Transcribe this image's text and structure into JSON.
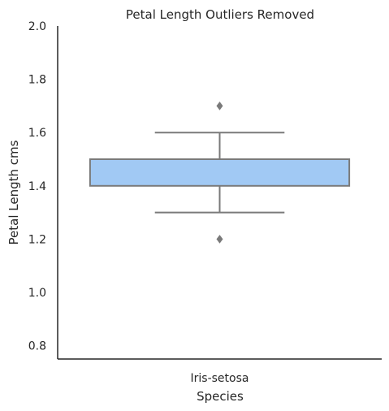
{
  "chart_data": {
    "type": "box",
    "title": "Petal Length Outliers Removed",
    "xlabel": "Species",
    "ylabel": "Petal Length cms",
    "categories": [
      "Iris-setosa"
    ],
    "ylim": [
      0.75,
      2.0
    ],
    "yticks": [
      "0.8",
      "1.0",
      "1.2",
      "1.4",
      "1.6",
      "1.8",
      "2.0"
    ],
    "grid": false,
    "boxes": [
      {
        "category": "Iris-setosa",
        "whisker_low": 1.3,
        "q1": 1.4,
        "median": 1.5,
        "q3": 1.5,
        "whisker_high": 1.6,
        "outliers": [
          1.2,
          1.7
        ]
      }
    ],
    "colors": {
      "box_fill": "#a1c9f4",
      "line": "#7a7a7a",
      "axis": "#262626",
      "outlier": "#7a7a7a"
    }
  }
}
